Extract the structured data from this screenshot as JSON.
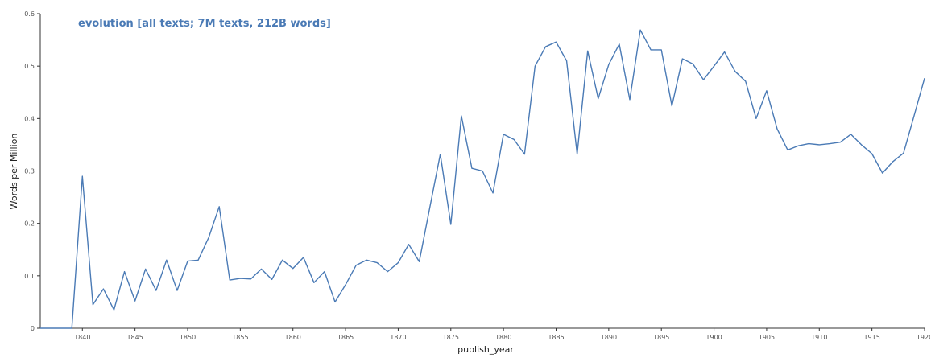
{
  "chart_data": {
    "type": "line",
    "title": "evolution [all texts; 7M texts, 212B words]",
    "xlabel": "publish_year",
    "ylabel": "Words per Million",
    "xlim": [
      1836,
      1920
    ],
    "ylim": [
      0,
      0.6
    ],
    "x_ticks": [
      "1840",
      "1845",
      "1850",
      "1855",
      "1860",
      "1865",
      "1870",
      "1875",
      "1880",
      "1885",
      "1890",
      "1895",
      "1900",
      "1905",
      "1910",
      "1915",
      "1920"
    ],
    "y_ticks": [
      "0",
      "0.1",
      "0.2",
      "0.3",
      "0.4",
      "0.5",
      "0.6"
    ],
    "grid": false,
    "line_color": "#4a7ab5",
    "series": [
      {
        "x": [
          1836,
          1837,
          1838,
          1839,
          1840,
          1841,
          1842,
          1843,
          1844,
          1845,
          1846,
          1847,
          1848,
          1849,
          1850,
          1851,
          1852,
          1853,
          1854,
          1855,
          1856,
          1857,
          1858,
          1859,
          1860,
          1861,
          1862,
          1863,
          1864,
          1865,
          1866,
          1867,
          1868,
          1869,
          1870,
          1871,
          1872,
          1873,
          1874,
          1875,
          1876,
          1877,
          1878,
          1879,
          1880,
          1881,
          1882,
          1883,
          1884,
          1885,
          1886,
          1887,
          1888,
          1889,
          1890,
          1891,
          1892,
          1893,
          1894,
          1895,
          1896,
          1897,
          1898,
          1899,
          1900,
          1901,
          1902,
          1903,
          1904,
          1905,
          1906,
          1907,
          1908,
          1909,
          1910,
          1911,
          1912,
          1913,
          1914,
          1915,
          1916,
          1917,
          1918,
          1919,
          1920
        ],
        "values": [
          0,
          0,
          0,
          0,
          0.29,
          0.045,
          0.075,
          0.035,
          0.108,
          0.052,
          0.113,
          0.072,
          0.13,
          0.072,
          0.128,
          0.13,
          0.173,
          0.232,
          0.092,
          0.095,
          0.094,
          0.113,
          0.093,
          0.13,
          0.114,
          0.135,
          0.087,
          0.108,
          0.05,
          0.083,
          0.12,
          0.13,
          0.125,
          0.108,
          0.125,
          0.16,
          0.127,
          0.23,
          0.332,
          0.198,
          0.405,
          0.305,
          0.3,
          0.258,
          0.37,
          0.36,
          0.332,
          0.5,
          0.537,
          0.546,
          0.51,
          0.332,
          0.529,
          0.438,
          0.503,
          0.542,
          0.436,
          0.569,
          0.531,
          0.531,
          0.424,
          0.514,
          0.504,
          0.474,
          0.5,
          0.527,
          0.49,
          0.471,
          0.4,
          0.453,
          0.38,
          0.34,
          0.348,
          0.352,
          0.35,
          0.352,
          0.355,
          0.37,
          0.35,
          0.333,
          0.296,
          0.318,
          0.334,
          0.405,
          0.477
        ]
      }
    ]
  }
}
